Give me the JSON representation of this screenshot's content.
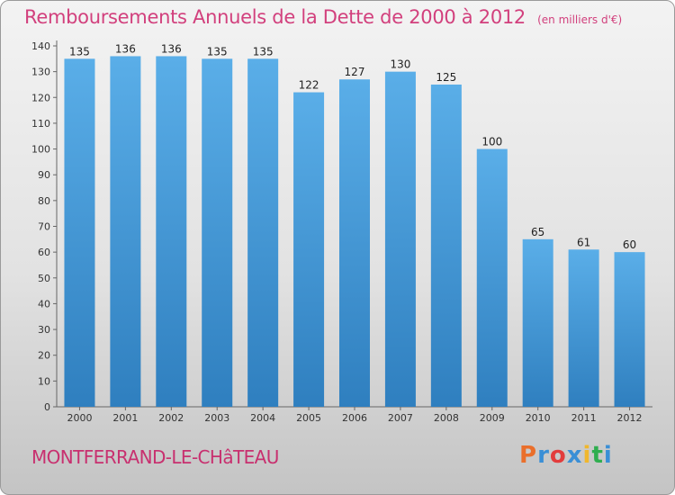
{
  "header": {
    "title": "Remboursements Annuels de la Dette de 2000 à 2012",
    "unit": "(en milliers d'€)"
  },
  "footer": {
    "city": "MONTFERRAND-LE-CHâTEAU",
    "brand": "Proxiti",
    "brand_colors": [
      "#ea6f2b",
      "#3a8fd6",
      "#e23c3c",
      "#3a8fd6",
      "#f0b72c",
      "#2fae4f",
      "#3a8fd6"
    ]
  },
  "colors": {
    "bar_top": "#5aaee8",
    "bar_bottom": "#2f7fbf",
    "title": "#d2407d"
  },
  "chart_data": {
    "type": "bar",
    "categories": [
      "2000",
      "2001",
      "2002",
      "2003",
      "2004",
      "2005",
      "2006",
      "2007",
      "2008",
      "2009",
      "2010",
      "2011",
      "2012"
    ],
    "values": [
      135,
      136,
      136,
      135,
      135,
      122,
      127,
      130,
      125,
      100,
      65,
      61,
      60
    ],
    "ylim": [
      0,
      140
    ],
    "yticks": [
      0,
      10,
      20,
      30,
      40,
      50,
      60,
      70,
      80,
      90,
      100,
      110,
      120,
      130,
      140
    ],
    "grid": false,
    "legend": "none"
  }
}
